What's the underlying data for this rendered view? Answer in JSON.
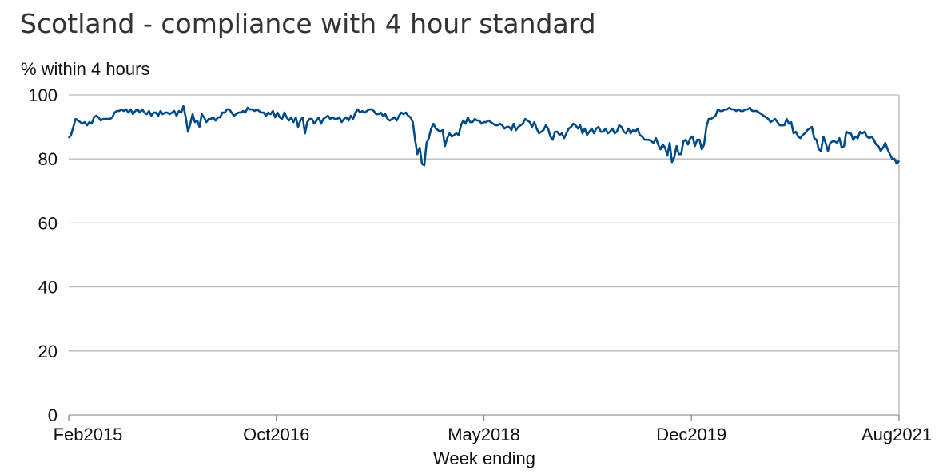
{
  "chart_data": {
    "type": "line",
    "title": "Scotland - compliance with 4 hour standard",
    "ylabel": "% within 4 hours",
    "xlabel": "Week ending",
    "ylim": [
      0,
      100
    ],
    "yticks": [
      "0",
      "20",
      "40",
      "60",
      "80",
      "100"
    ],
    "xtick_labels": [
      "Feb2015",
      "Oct2016",
      "May2018",
      "Dec2019",
      "Aug2021"
    ],
    "grid": true,
    "series_color": "#004b87",
    "grid_color": "#bbbbbb",
    "series": [
      {
        "values": [
          86.5,
          87.5,
          90,
          92.5,
          92,
          91.5,
          91,
          91.5,
          90.5,
          91.5,
          91,
          93,
          93.5,
          93,
          92,
          92.5,
          92.5,
          92.5,
          92.5,
          93,
          94.5,
          95,
          95,
          95.5,
          95,
          95.5,
          94.5,
          95.5,
          94,
          95,
          95.5,
          94.5,
          95.5,
          94.5,
          94,
          95,
          93.5,
          94.5,
          94.5,
          93.5,
          95,
          94,
          94.5,
          94.5,
          94,
          94.5,
          95,
          93.5,
          95,
          94.5,
          96.5,
          93,
          88.5,
          91,
          94,
          91.5,
          92,
          90,
          94,
          93,
          91.5,
          92.5,
          92.5,
          93,
          92,
          93,
          93,
          94.5,
          94.5,
          95.5,
          95.5,
          94.5,
          93.5,
          94,
          94.5,
          94.5,
          95,
          94.5,
          96,
          95.5,
          95.5,
          95,
          95.5,
          95,
          94.5,
          94.5,
          93.5,
          94.5,
          94,
          95,
          93,
          94.5,
          93,
          92.5,
          94.5,
          93,
          92,
          93,
          91.5,
          93,
          90,
          92,
          93,
          88,
          91.5,
          92.5,
          92.5,
          91,
          92,
          93,
          91,
          92.5,
          93,
          93.5,
          92.5,
          93,
          92.5,
          92.5,
          93,
          91.5,
          92.5,
          93,
          92,
          93.5,
          92.5,
          94.5,
          95.5,
          94.5,
          95,
          94.5,
          95,
          95.5,
          95.5,
          95,
          94,
          94,
          94.5,
          93.5,
          94,
          92.5,
          92,
          92.5,
          93,
          92,
          93.5,
          94.5,
          94,
          94.5,
          93.5,
          93,
          91.5,
          86,
          81.5,
          83.5,
          78.5,
          78,
          85,
          86.5,
          89.5,
          91,
          89.5,
          89,
          88.5,
          89,
          84,
          86.5,
          88,
          87,
          87.5,
          88,
          87.5,
          90.5,
          92,
          91,
          93,
          91.5,
          91.5,
          92.5,
          92,
          92,
          91,
          91.5,
          91.5,
          92,
          91.5,
          91,
          90.5,
          90.5,
          91,
          90.5,
          89.5,
          90,
          90,
          89,
          91,
          89,
          90,
          90.5,
          91,
          92.5,
          92,
          91.5,
          90,
          91.5,
          89.5,
          88,
          88.5,
          89,
          90.5,
          89.5,
          87,
          86,
          88.5,
          88.5,
          87.5,
          88,
          86.5,
          88,
          89.5,
          90,
          91,
          90.5,
          89.5,
          90.5,
          88,
          89.5,
          87.5,
          88.5,
          89.5,
          88,
          89.5,
          90,
          88.5,
          88.5,
          89.5,
          88,
          88.5,
          89.5,
          88,
          88.5,
          90.5,
          90,
          88.5,
          88,
          89.5,
          88,
          89,
          88.5,
          89.5,
          87.5,
          87,
          86,
          86,
          86,
          85.5,
          85,
          86.5,
          84.5,
          83,
          84.5,
          83.5,
          81,
          85,
          79,
          80.5,
          84,
          81.5,
          81.5,
          85.5,
          86,
          84.5,
          86.5,
          87,
          84,
          86,
          86,
          83,
          84.5,
          90,
          92.5,
          92.5,
          93,
          93.5,
          95.5,
          95,
          95,
          95.5,
          95.5,
          96,
          95.5,
          95.5,
          95,
          95.5,
          95,
          95,
          95.5,
          95.5,
          96,
          95,
          95,
          95,
          94.5,
          94,
          93.5,
          93,
          92.5,
          91.5,
          92,
          92.5,
          91.5,
          90.5,
          90.5,
          90.5,
          92.5,
          91,
          91.5,
          88,
          88.5,
          87,
          86.5,
          87.5,
          88,
          89,
          89.5,
          90,
          86.5,
          86,
          83,
          82.5,
          87,
          85,
          82.5,
          85,
          85.5,
          85.5,
          85,
          86.5,
          83.5,
          84,
          88.5,
          88,
          88,
          86,
          87,
          86.5,
          88.5,
          88,
          88.5,
          87,
          86.5,
          87,
          86,
          84.5,
          84,
          82.5,
          83.5,
          85,
          83,
          81.5,
          80,
          80,
          78.5,
          79.5
        ]
      }
    ]
  }
}
